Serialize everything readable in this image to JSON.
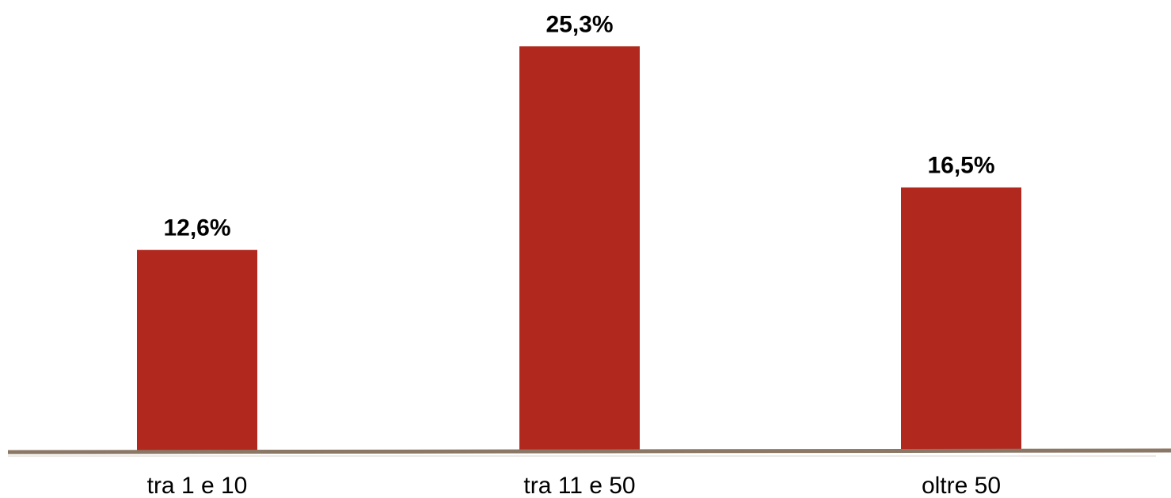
{
  "chart_data": {
    "type": "bar",
    "categories": [
      "tra 1 e 10",
      "tra 11 e 50",
      "oltre 50"
    ],
    "values": [
      12.6,
      25.3,
      16.5
    ],
    "value_labels": [
      "12,6%",
      "25,3%",
      "16,5%"
    ],
    "ylim": [
      0,
      26.8
    ],
    "grid": false,
    "legend": "none",
    "bar_color": "#B0281E",
    "axis_color": "#8B7765"
  }
}
